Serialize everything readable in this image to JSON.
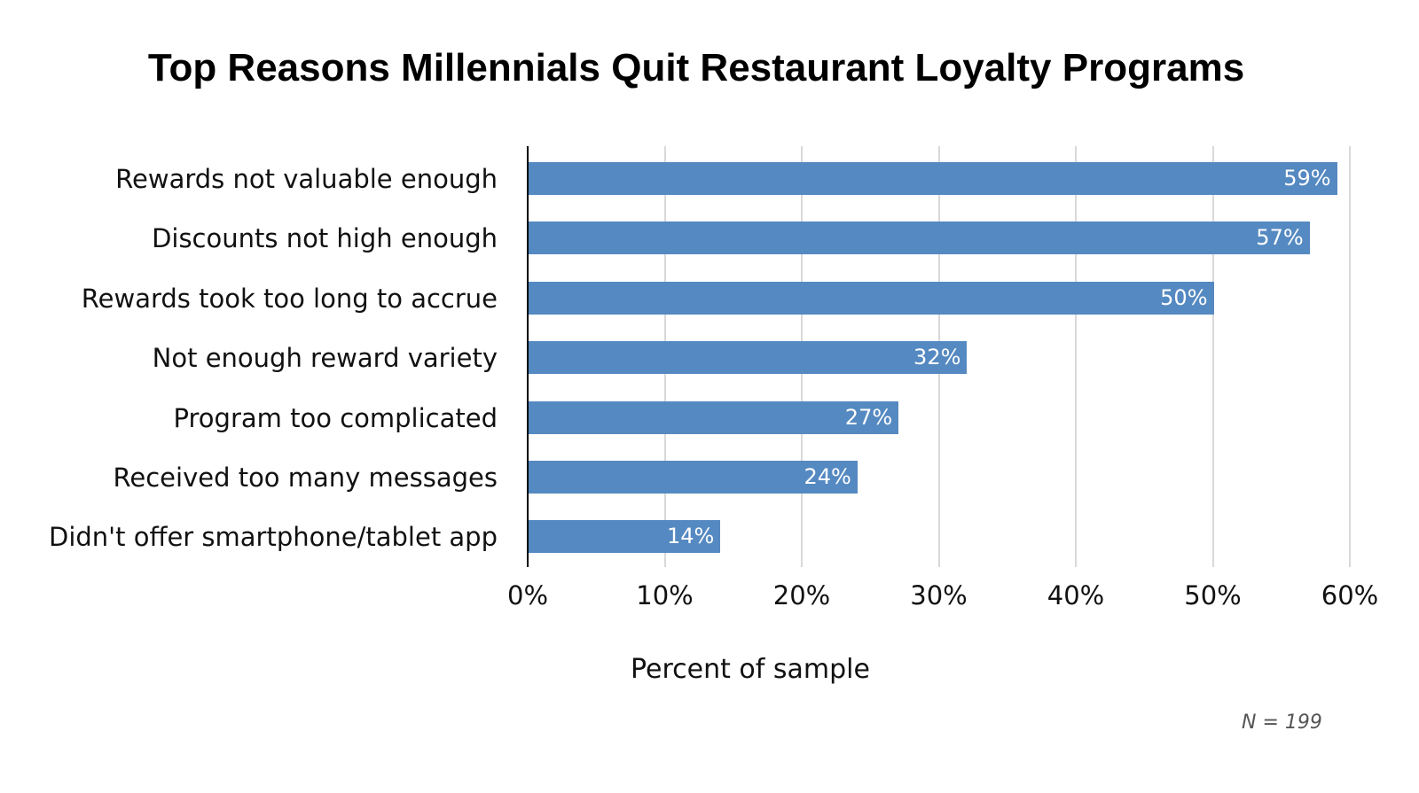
{
  "chart_data": {
    "type": "bar",
    "orientation": "horizontal",
    "title": "Top Reasons Millennials Quit Restaurant Loyalty Programs",
    "xlabel": "Percent of sample",
    "ylabel": "",
    "categories": [
      "Rewards not valuable enough",
      "Discounts not high enough",
      "Rewards took too long to accrue",
      "Not enough reward variety",
      "Program too complicated",
      "Received too many messages",
      "Didn't offer smartphone/tablet app"
    ],
    "values": [
      59,
      57,
      50,
      32,
      27,
      24,
      14
    ],
    "value_labels": [
      "59%",
      "57%",
      "50%",
      "32%",
      "27%",
      "24%",
      "14%"
    ],
    "xlim": [
      0,
      60
    ],
    "x_ticks": [
      "0%",
      "10%",
      "20%",
      "30%",
      "40%",
      "50%",
      "60%"
    ],
    "grid": "vertical",
    "legend": "none",
    "bar_color": "#5589c1",
    "annotation": "N = 199"
  }
}
